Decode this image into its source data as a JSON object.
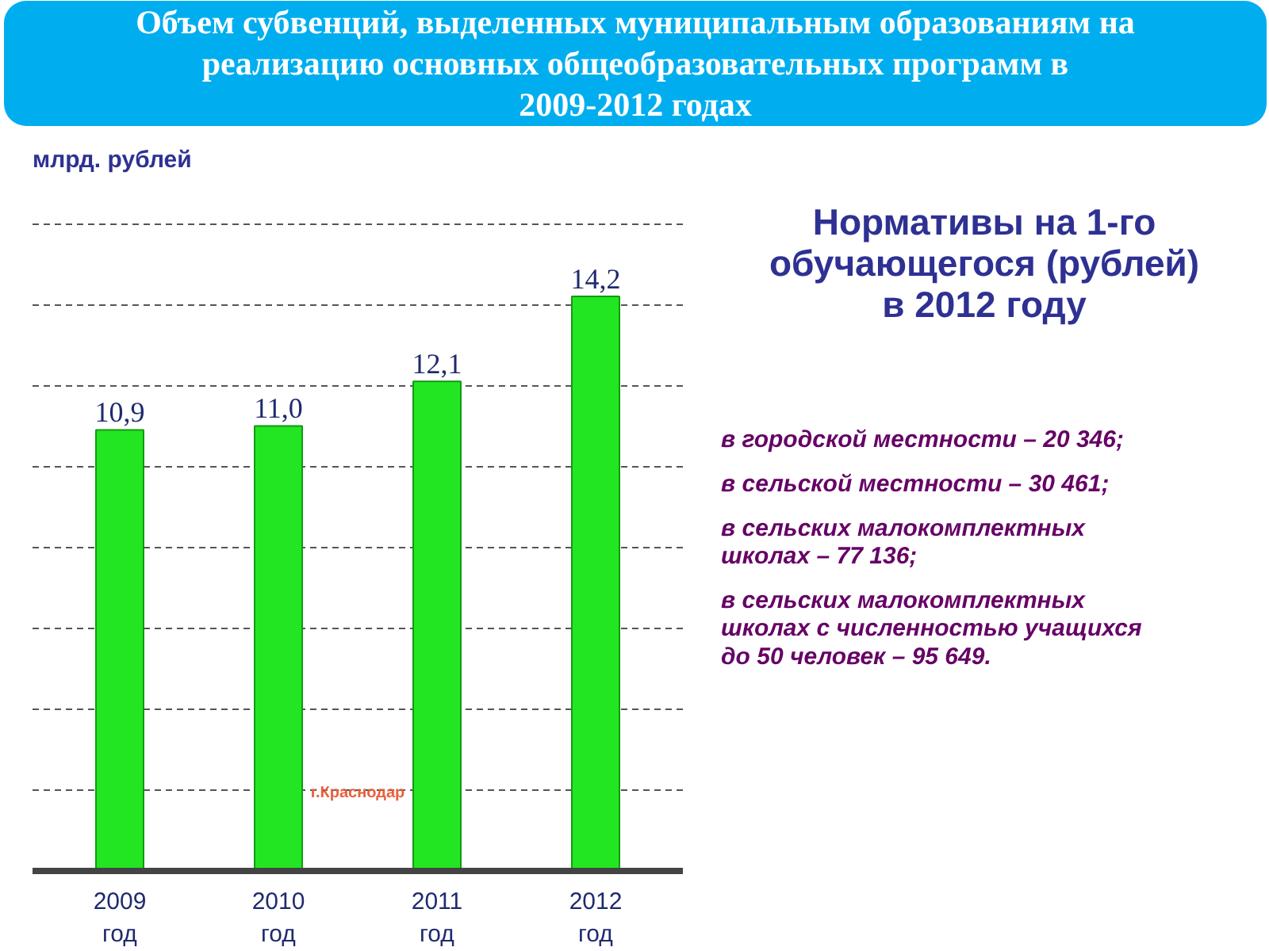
{
  "chart_data": [
    {
      "type": "bar",
      "title": "Объем субвенций, выделенных муниципальным образованиям на реализацию основных общеобразовательных программ в 2009-2012 годах",
      "ylabel": "млрд. рублей",
      "categories": [
        "2009 год",
        "2010 год",
        "2011 год",
        "2012 год"
      ],
      "values": [
        10.9,
        11.0,
        12.1,
        14.2
      ],
      "value_labels": [
        "10,9",
        "11,0",
        "12,1",
        "14,2"
      ],
      "color": "#22e622",
      "grid": "y",
      "annotations": [
        "г.Краснодар"
      ]
    },
    {
      "type": "other",
      "title": "Нормативы на 1-го обучающегося (рублей) в 2012 году",
      "annotations": [
        "в городской местности – 20 346;",
        "в сельской местности – 30 461;",
        "в сельских малокомплектных школах – 77 136;",
        "в сельских малокомплектных школах с численностью учащихся до 50 человек – 95 649."
      ]
    }
  ]
}
